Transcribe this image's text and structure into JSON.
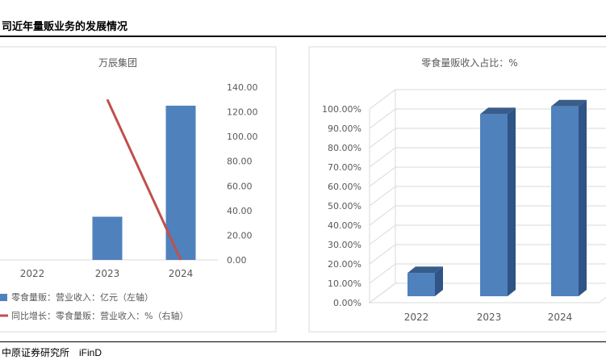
{
  "page_title": "司近年量贩业务的发展情况",
  "source": {
    "label": "中原证券研究所",
    "brand": "iFinD"
  },
  "colors": {
    "bar": "#4f81bd",
    "bar_dark": "#2f5485",
    "bar_top": "#385d8a",
    "line": "#c0504d",
    "grid": "#d9d9d9"
  },
  "chart_data": [
    {
      "type": "bar",
      "title": "万辰集团",
      "categories": [
        "2022",
        "2023",
        "2024"
      ],
      "series": [
        {
          "name": "零食量贩：营业收入：亿元（左轴）",
          "type": "bar",
          "axis": "left",
          "values": [
            0,
            35,
            125
          ]
        },
        {
          "name": "同比增长：零食量贩：营业收入：%（右轴）",
          "type": "line",
          "axis": "right",
          "values": [
            null,
            130,
            0
          ]
        }
      ],
      "y_right_ticks": [
        "140.00",
        "120.00",
        "100.00",
        "80.00",
        "60.00",
        "40.00",
        "20.00",
        "0.00"
      ],
      "y_right_lim": [
        0,
        140
      ],
      "grid": false,
      "legend": "bottom"
    },
    {
      "type": "bar",
      "title": "零食量贩收入占比：%",
      "categories": [
        "2022",
        "2023",
        "2024"
      ],
      "series": [
        {
          "name": "零食量贩收入占比",
          "values": [
            12,
            94,
            98
          ]
        }
      ],
      "y_ticks": [
        "100.00%",
        "90.00%",
        "80.00%",
        "70.00%",
        "60.00%",
        "50.00%",
        "40.00%",
        "30.00%",
        "20.00%",
        "10.00%",
        "0.00%"
      ],
      "ylim": [
        0,
        100
      ],
      "grid": true,
      "style": "3d"
    }
  ]
}
